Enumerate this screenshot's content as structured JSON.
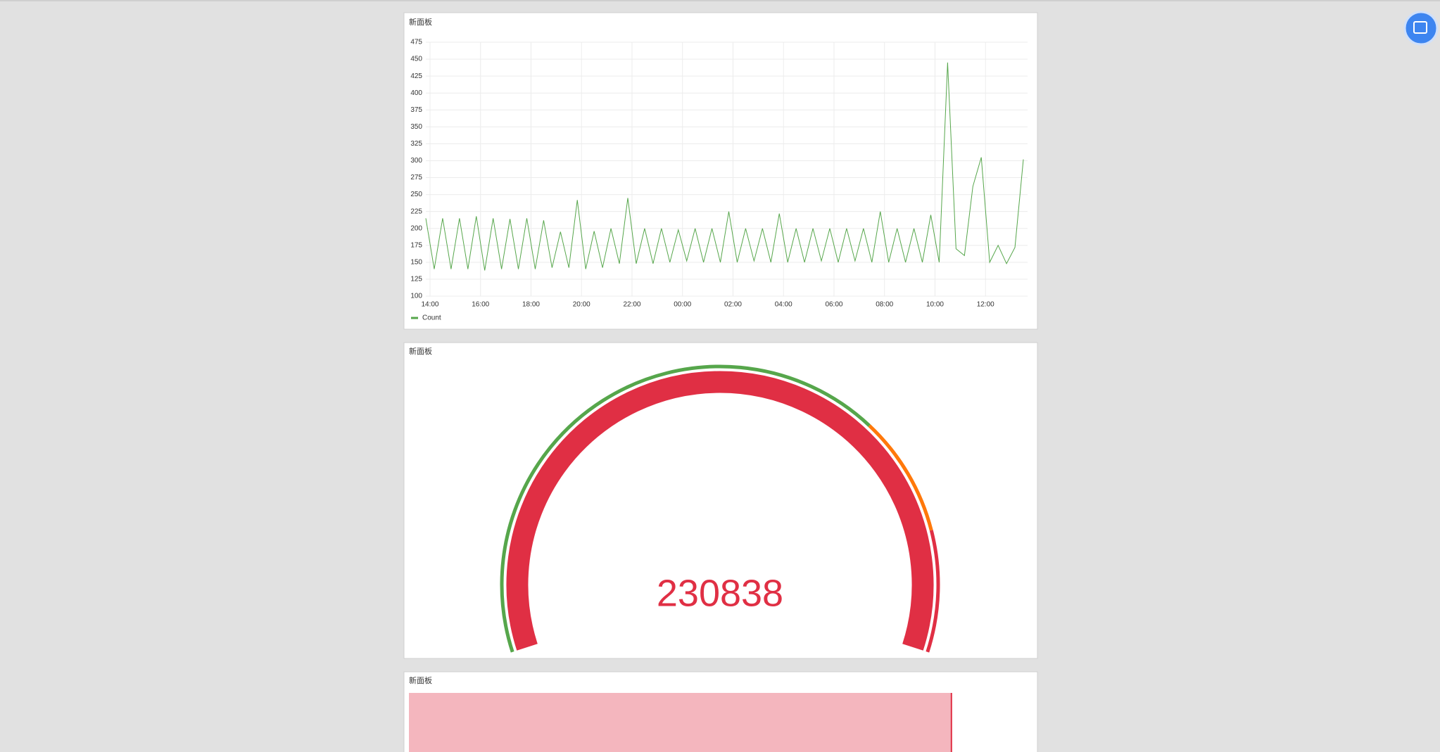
{
  "chart_data": [
    {
      "type": "line",
      "title": "新面板",
      "x": [
        "13:50",
        "14:10",
        "14:30",
        "14:50",
        "15:10",
        "15:30",
        "15:50",
        "16:10",
        "16:30",
        "16:50",
        "17:10",
        "17:30",
        "17:50",
        "18:10",
        "18:30",
        "18:50",
        "19:10",
        "19:30",
        "19:50",
        "20:10",
        "20:30",
        "20:50",
        "21:10",
        "21:30",
        "21:50",
        "22:10",
        "22:30",
        "22:50",
        "23:10",
        "23:30",
        "23:50",
        "00:10",
        "00:30",
        "00:50",
        "01:10",
        "01:30",
        "01:50",
        "02:10",
        "02:30",
        "02:50",
        "03:10",
        "03:30",
        "03:50",
        "04:10",
        "04:30",
        "04:50",
        "05:10",
        "05:30",
        "05:50",
        "06:10",
        "06:30",
        "06:50",
        "07:10",
        "07:30",
        "07:50",
        "08:10",
        "08:30",
        "08:50",
        "09:10",
        "09:30",
        "09:50",
        "10:10",
        "10:30",
        "10:50",
        "11:10",
        "11:30",
        "11:50",
        "12:10",
        "12:30",
        "12:50",
        "13:10",
        "13:30"
      ],
      "series": [
        {
          "name": "Count",
          "color": "#56a64b",
          "values": [
            215,
            140,
            215,
            140,
            215,
            140,
            218,
            138,
            215,
            140,
            214,
            140,
            215,
            140,
            212,
            142,
            195,
            142,
            242,
            140,
            196,
            142,
            200,
            148,
            245,
            148,
            200,
            148,
            200,
            150,
            198,
            152,
            200,
            150,
            200,
            150,
            225,
            150,
            200,
            152,
            200,
            150,
            222,
            150,
            200,
            150,
            200,
            152,
            200,
            150,
            200,
            152,
            200,
            150,
            225,
            150,
            200,
            150,
            200,
            150,
            220,
            150,
            445,
            170,
            160,
            262,
            305,
            150,
            175,
            148,
            172,
            302
          ]
        }
      ],
      "xlim": [
        "13:50",
        "13:40"
      ],
      "xticks": [
        "14:00",
        "16:00",
        "18:00",
        "20:00",
        "22:00",
        "00:00",
        "02:00",
        "04:00",
        "06:00",
        "08:00",
        "10:00",
        "12:00"
      ],
      "ylim": [
        100,
        475
      ],
      "yticks": [
        100,
        125,
        150,
        175,
        200,
        225,
        250,
        275,
        300,
        325,
        350,
        375,
        400,
        425,
        450,
        475
      ],
      "grid": true
    },
    {
      "type": "gauge",
      "title": "新面板",
      "value": 230838,
      "color": "#e02f44",
      "min": 0,
      "max": 100,
      "thresholds": [
        {
          "value": 0,
          "color": "#56a64b"
        },
        {
          "value": 70,
          "color": "#ff780a"
        },
        {
          "value": 85,
          "color": "#e02f44"
        }
      ]
    },
    {
      "type": "bargauge",
      "title": "新面板",
      "value": 87,
      "min": 0,
      "max": 100,
      "color": "#e02f44"
    }
  ]
}
